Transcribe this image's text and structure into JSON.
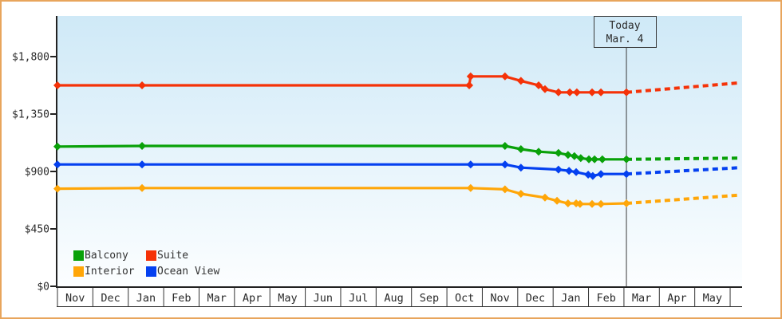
{
  "frame": {
    "border_color": "#e8a55c",
    "background": "#ffffff"
  },
  "today_marker": {
    "line1": "Today",
    "line2": "Mar. 4"
  },
  "chart_data": {
    "type": "line",
    "title": "",
    "xlabel": "",
    "ylabel": "",
    "plot_background_gradient": [
      "#cfe9f7",
      "#fcfeff"
    ],
    "axis_color": "#222222",
    "grid": false,
    "legend_position": "bottom-left",
    "y_axis": {
      "range": [
        0,
        2100
      ],
      "ticks": [
        {
          "value": 0,
          "label": "$0"
        },
        {
          "value": 450,
          "label": "$450"
        },
        {
          "value": 900,
          "label": "$900"
        },
        {
          "value": 1350,
          "label": "$1,350"
        },
        {
          "value": 1800,
          "label": "$1,800"
        }
      ]
    },
    "x_axis": {
      "unit": "month",
      "months": [
        "Nov",
        "Dec",
        "Jan",
        "Feb",
        "Mar",
        "Apr",
        "May",
        "Jun",
        "Jul",
        "Aug",
        "Sep",
        "Oct",
        "Nov",
        "Dec",
        "Jan",
        "Feb",
        "Mar",
        "Apr",
        "May"
      ]
    },
    "today": {
      "u": 16.07,
      "label": "Today",
      "date": "Mar. 4"
    },
    "series": [
      {
        "name": "Balcony",
        "color": "#09a109",
        "points": [
          [
            0,
            1095
          ],
          [
            2.39,
            1100
          ],
          [
            12.64,
            1100
          ],
          [
            13.09,
            1075
          ],
          [
            13.59,
            1055
          ],
          [
            14.15,
            1045
          ],
          [
            14.42,
            1030
          ],
          [
            14.6,
            1020
          ],
          [
            14.78,
            1005
          ],
          [
            15.01,
            995
          ],
          [
            15.17,
            995
          ],
          [
            15.39,
            995
          ],
          [
            16.07,
            995
          ]
        ],
        "forecast": [
          [
            16.07,
            995
          ],
          [
            19.29,
            1005
          ]
        ]
      },
      {
        "name": "Suite",
        "color": "#f53208",
        "points": [
          [
            0,
            1575
          ],
          [
            2.39,
            1575
          ],
          [
            11.63,
            1575
          ],
          [
            11.67,
            1645
          ],
          [
            12.64,
            1645
          ],
          [
            13.09,
            1610
          ],
          [
            13.59,
            1575
          ],
          [
            13.77,
            1545
          ],
          [
            14.15,
            1520
          ],
          [
            14.47,
            1520
          ],
          [
            14.67,
            1520
          ],
          [
            15.1,
            1520
          ],
          [
            15.35,
            1520
          ],
          [
            16.07,
            1520
          ]
        ],
        "forecast": [
          [
            16.07,
            1520
          ],
          [
            19.29,
            1595
          ]
        ]
      },
      {
        "name": "Interior",
        "color": "#ffa608",
        "points": [
          [
            0,
            765
          ],
          [
            2.39,
            770
          ],
          [
            11.67,
            770
          ],
          [
            12.64,
            760
          ],
          [
            13.09,
            725
          ],
          [
            13.77,
            695
          ],
          [
            14.11,
            670
          ],
          [
            14.42,
            650
          ],
          [
            14.65,
            650
          ],
          [
            14.76,
            645
          ],
          [
            15.1,
            645
          ],
          [
            15.35,
            645
          ],
          [
            16.07,
            650
          ]
        ],
        "forecast": [
          [
            16.07,
            650
          ],
          [
            19.29,
            715
          ]
        ]
      },
      {
        "name": "Ocean View",
        "color": "#0440f0",
        "points": [
          [
            0,
            955
          ],
          [
            2.39,
            955
          ],
          [
            11.67,
            955
          ],
          [
            12.64,
            955
          ],
          [
            13.09,
            930
          ],
          [
            14.15,
            915
          ],
          [
            14.45,
            905
          ],
          [
            14.65,
            895
          ],
          [
            14.99,
            875
          ],
          [
            15.12,
            865
          ],
          [
            15.35,
            880
          ],
          [
            16.07,
            880
          ]
        ],
        "forecast": [
          [
            16.07,
            880
          ],
          [
            19.29,
            930
          ]
        ]
      }
    ]
  }
}
